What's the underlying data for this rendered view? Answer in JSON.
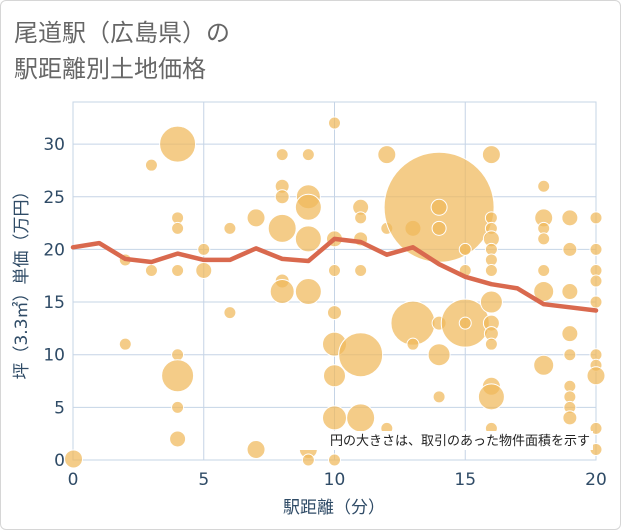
{
  "chart_data": {
    "type": "scatter",
    "title_lines": [
      "尾道駅（広島県）の",
      "駅距離別土地価格"
    ],
    "xlabel": "駅距離（分）",
    "ylabel": "坪（3.3㎡）単価（万円）",
    "xlim": [
      0,
      20
    ],
    "ylim": [
      0,
      34
    ],
    "x_ticks": [
      "0",
      "5",
      "10",
      "15",
      "20"
    ],
    "y_ticks": [
      "0",
      "5",
      "10",
      "15",
      "20",
      "25",
      "30"
    ],
    "x_tick_values": [
      0,
      5,
      10,
      15,
      20
    ],
    "y_tick_values": [
      0,
      5,
      10,
      15,
      20,
      25,
      30
    ],
    "note": "円の大きさは、取引のあった物件面積を示す",
    "grid": true,
    "colors": {
      "bubble": "#f0b85a",
      "line": "#d9694e",
      "axis_text": "#2f4b66",
      "grid": "#c5d4e6"
    },
    "bubbles": [
      {
        "x": 0.02,
        "y": 0.1,
        "r": 9
      },
      {
        "x": 2,
        "y": 19,
        "r": 6
      },
      {
        "x": 2,
        "y": 11,
        "r": 6
      },
      {
        "x": 3,
        "y": 28,
        "r": 6
      },
      {
        "x": 3,
        "y": 18,
        "r": 6
      },
      {
        "x": 4,
        "y": 30,
        "r": 18
      },
      {
        "x": 4,
        "y": 23,
        "r": 6
      },
      {
        "x": 4,
        "y": 22,
        "r": 6
      },
      {
        "x": 4,
        "y": 18,
        "r": 6
      },
      {
        "x": 4,
        "y": 10,
        "r": 6
      },
      {
        "x": 4,
        "y": 8,
        "r": 16
      },
      {
        "x": 4,
        "y": 5,
        "r": 6
      },
      {
        "x": 4,
        "y": 2,
        "r": 8
      },
      {
        "x": 5,
        "y": 20,
        "r": 6
      },
      {
        "x": 5,
        "y": 18,
        "r": 8
      },
      {
        "x": 6,
        "y": 22,
        "r": 6
      },
      {
        "x": 6,
        "y": 14,
        "r": 6
      },
      {
        "x": 7,
        "y": 23,
        "r": 9
      },
      {
        "x": 7,
        "y": 1,
        "r": 9
      },
      {
        "x": 8,
        "y": 29,
        "r": 6
      },
      {
        "x": 8,
        "y": 26,
        "r": 7
      },
      {
        "x": 8,
        "y": 25,
        "r": 7
      },
      {
        "x": 8,
        "y": 22,
        "r": 14
      },
      {
        "x": 8,
        "y": 17,
        "r": 7
      },
      {
        "x": 8,
        "y": 16,
        "r": 12
      },
      {
        "x": 9,
        "y": 29,
        "r": 6
      },
      {
        "x": 9,
        "y": 25,
        "r": 12
      },
      {
        "x": 9,
        "y": 24,
        "r": 13
      },
      {
        "x": 9,
        "y": 21,
        "r": 13
      },
      {
        "x": 9,
        "y": 16,
        "r": 13
      },
      {
        "x": 9,
        "y": 1,
        "r": 9
      },
      {
        "x": 9,
        "y": 0,
        "r": 6
      },
      {
        "x": 10,
        "y": 32,
        "r": 6
      },
      {
        "x": 10,
        "y": 21,
        "r": 8
      },
      {
        "x": 10,
        "y": 18,
        "r": 6
      },
      {
        "x": 10,
        "y": 14,
        "r": 7
      },
      {
        "x": 10,
        "y": 11,
        "r": 12
      },
      {
        "x": 10,
        "y": 8,
        "r": 11
      },
      {
        "x": 10,
        "y": 4,
        "r": 12
      },
      {
        "x": 10,
        "y": 0,
        "r": 6
      },
      {
        "x": 11,
        "y": 24,
        "r": 8
      },
      {
        "x": 11,
        "y": 23,
        "r": 6
      },
      {
        "x": 11,
        "y": 21,
        "r": 7
      },
      {
        "x": 11,
        "y": 18,
        "r": 6
      },
      {
        "x": 11,
        "y": 10,
        "r": 22
      },
      {
        "x": 11,
        "y": 4,
        "r": 14
      },
      {
        "x": 12,
        "y": 29,
        "r": 9
      },
      {
        "x": 12,
        "y": 22,
        "r": 6
      },
      {
        "x": 12,
        "y": 3,
        "r": 6
      },
      {
        "x": 13,
        "y": 22,
        "r": 8
      },
      {
        "x": 13,
        "y": 13,
        "r": 22
      },
      {
        "x": 13,
        "y": 11,
        "r": 6
      },
      {
        "x": 14,
        "y": 24,
        "r": 55
      },
      {
        "x": 14,
        "y": 24,
        "r": 8
      },
      {
        "x": 14,
        "y": 22,
        "r": 7
      },
      {
        "x": 14,
        "y": 13,
        "r": 7
      },
      {
        "x": 14,
        "y": 10,
        "r": 11
      },
      {
        "x": 14,
        "y": 6,
        "r": 6
      },
      {
        "x": 15,
        "y": 20,
        "r": 6
      },
      {
        "x": 15,
        "y": 18,
        "r": 6
      },
      {
        "x": 15,
        "y": 13,
        "r": 24
      },
      {
        "x": 15,
        "y": 13,
        "r": 6
      },
      {
        "x": 16,
        "y": 29,
        "r": 9
      },
      {
        "x": 16,
        "y": 23,
        "r": 6
      },
      {
        "x": 16,
        "y": 22,
        "r": 6
      },
      {
        "x": 16,
        "y": 21,
        "r": 8
      },
      {
        "x": 16,
        "y": 20,
        "r": 6
      },
      {
        "x": 16,
        "y": 19,
        "r": 6
      },
      {
        "x": 16,
        "y": 18,
        "r": 6
      },
      {
        "x": 16,
        "y": 15,
        "r": 11
      },
      {
        "x": 16,
        "y": 13,
        "r": 8
      },
      {
        "x": 16,
        "y": 12,
        "r": 7
      },
      {
        "x": 16,
        "y": 11,
        "r": 6
      },
      {
        "x": 16,
        "y": 7,
        "r": 9
      },
      {
        "x": 16,
        "y": 6,
        "r": 13
      },
      {
        "x": 16,
        "y": 3,
        "r": 6
      },
      {
        "x": 18,
        "y": 26,
        "r": 6
      },
      {
        "x": 18,
        "y": 23,
        "r": 9
      },
      {
        "x": 18,
        "y": 22,
        "r": 6
      },
      {
        "x": 18,
        "y": 21,
        "r": 6
      },
      {
        "x": 18,
        "y": 18,
        "r": 6
      },
      {
        "x": 18,
        "y": 16,
        "r": 10
      },
      {
        "x": 18,
        "y": 9,
        "r": 10
      },
      {
        "x": 19,
        "y": 23,
        "r": 8
      },
      {
        "x": 19,
        "y": 20,
        "r": 7
      },
      {
        "x": 19,
        "y": 16,
        "r": 8
      },
      {
        "x": 19,
        "y": 12,
        "r": 8
      },
      {
        "x": 19,
        "y": 10,
        "r": 6
      },
      {
        "x": 19,
        "y": 7,
        "r": 6
      },
      {
        "x": 19,
        "y": 6,
        "r": 6
      },
      {
        "x": 19,
        "y": 5,
        "r": 6
      },
      {
        "x": 19,
        "y": 4,
        "r": 7
      },
      {
        "x": 19,
        "y": 2,
        "r": 6
      },
      {
        "x": 20,
        "y": 23,
        "r": 6
      },
      {
        "x": 20,
        "y": 20,
        "r": 6
      },
      {
        "x": 20,
        "y": 18,
        "r": 6
      },
      {
        "x": 20,
        "y": 17,
        "r": 6
      },
      {
        "x": 20,
        "y": 15,
        "r": 6
      },
      {
        "x": 20,
        "y": 10,
        "r": 6
      },
      {
        "x": 20,
        "y": 9,
        "r": 6
      },
      {
        "x": 20,
        "y": 8,
        "r": 9
      },
      {
        "x": 20,
        "y": 3,
        "r": 6
      },
      {
        "x": 20,
        "y": 1,
        "r": 6
      }
    ],
    "trend": {
      "x": [
        0,
        1,
        2,
        3,
        4,
        5,
        6,
        7,
        8,
        9,
        10,
        11,
        12,
        13,
        14,
        15,
        16,
        17,
        18,
        19,
        20
      ],
      "y": [
        20.2,
        20.6,
        19.1,
        18.8,
        19.6,
        19.0,
        19.0,
        20.1,
        19.1,
        18.9,
        21.0,
        20.7,
        19.5,
        20.2,
        18.6,
        17.4,
        16.7,
        16.3,
        14.8,
        14.5,
        14.2
      ]
    }
  }
}
